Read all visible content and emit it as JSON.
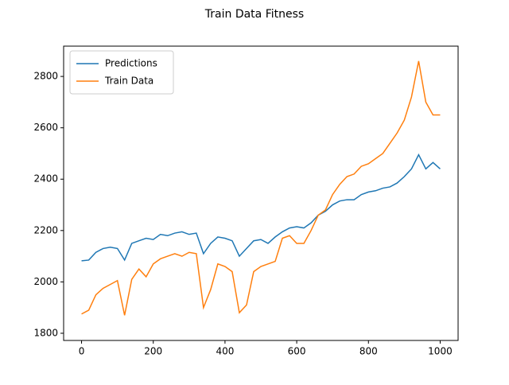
{
  "chart_data": {
    "type": "line",
    "title": "Train Data Fitness",
    "x": [
      0,
      20,
      40,
      60,
      80,
      100,
      120,
      140,
      160,
      180,
      200,
      220,
      240,
      260,
      280,
      300,
      320,
      340,
      360,
      380,
      400,
      420,
      440,
      460,
      480,
      500,
      520,
      540,
      560,
      580,
      600,
      620,
      640,
      660,
      680,
      700,
      720,
      740,
      760,
      780,
      800,
      820,
      840,
      860,
      880,
      900,
      920,
      940,
      960,
      980,
      1000
    ],
    "series": [
      {
        "name": "Predictions",
        "color": "#1f77b4",
        "values": [
          2082,
          2085,
          2115,
          2130,
          2135,
          2130,
          2085,
          2150,
          2160,
          2170,
          2165,
          2185,
          2180,
          2190,
          2195,
          2185,
          2190,
          2110,
          2150,
          2175,
          2170,
          2160,
          2100,
          2130,
          2160,
          2165,
          2150,
          2175,
          2195,
          2210,
          2215,
          2210,
          2230,
          2260,
          2275,
          2300,
          2315,
          2320,
          2320,
          2340,
          2350,
          2355,
          2365,
          2370,
          2385,
          2410,
          2440,
          2495,
          2440,
          2465,
          2440
        ]
      },
      {
        "name": "Train Data",
        "color": "#ff7f0e",
        "values": [
          1875,
          1890,
          1950,
          1975,
          1990,
          2005,
          1870,
          2010,
          2050,
          2020,
          2070,
          2090,
          2100,
          2110,
          2100,
          2115,
          2110,
          1900,
          1970,
          2070,
          2060,
          2040,
          1880,
          1910,
          2040,
          2060,
          2070,
          2080,
          2170,
          2180,
          2150,
          2150,
          2200,
          2260,
          2280,
          2340,
          2380,
          2410,
          2420,
          2450,
          2460,
          2480,
          2500,
          2540,
          2580,
          2630,
          2720,
          2860,
          2700,
          2650,
          2650
        ]
      }
    ],
    "xlim": [
      -50,
      1050
    ],
    "xticks": [
      0,
      200,
      400,
      600,
      800,
      1000
    ],
    "ylim": [
      1772,
      2918
    ],
    "yticks": [
      1800,
      2000,
      2200,
      2400,
      2600,
      2800
    ],
    "grid": false,
    "legend": "upper left"
  }
}
